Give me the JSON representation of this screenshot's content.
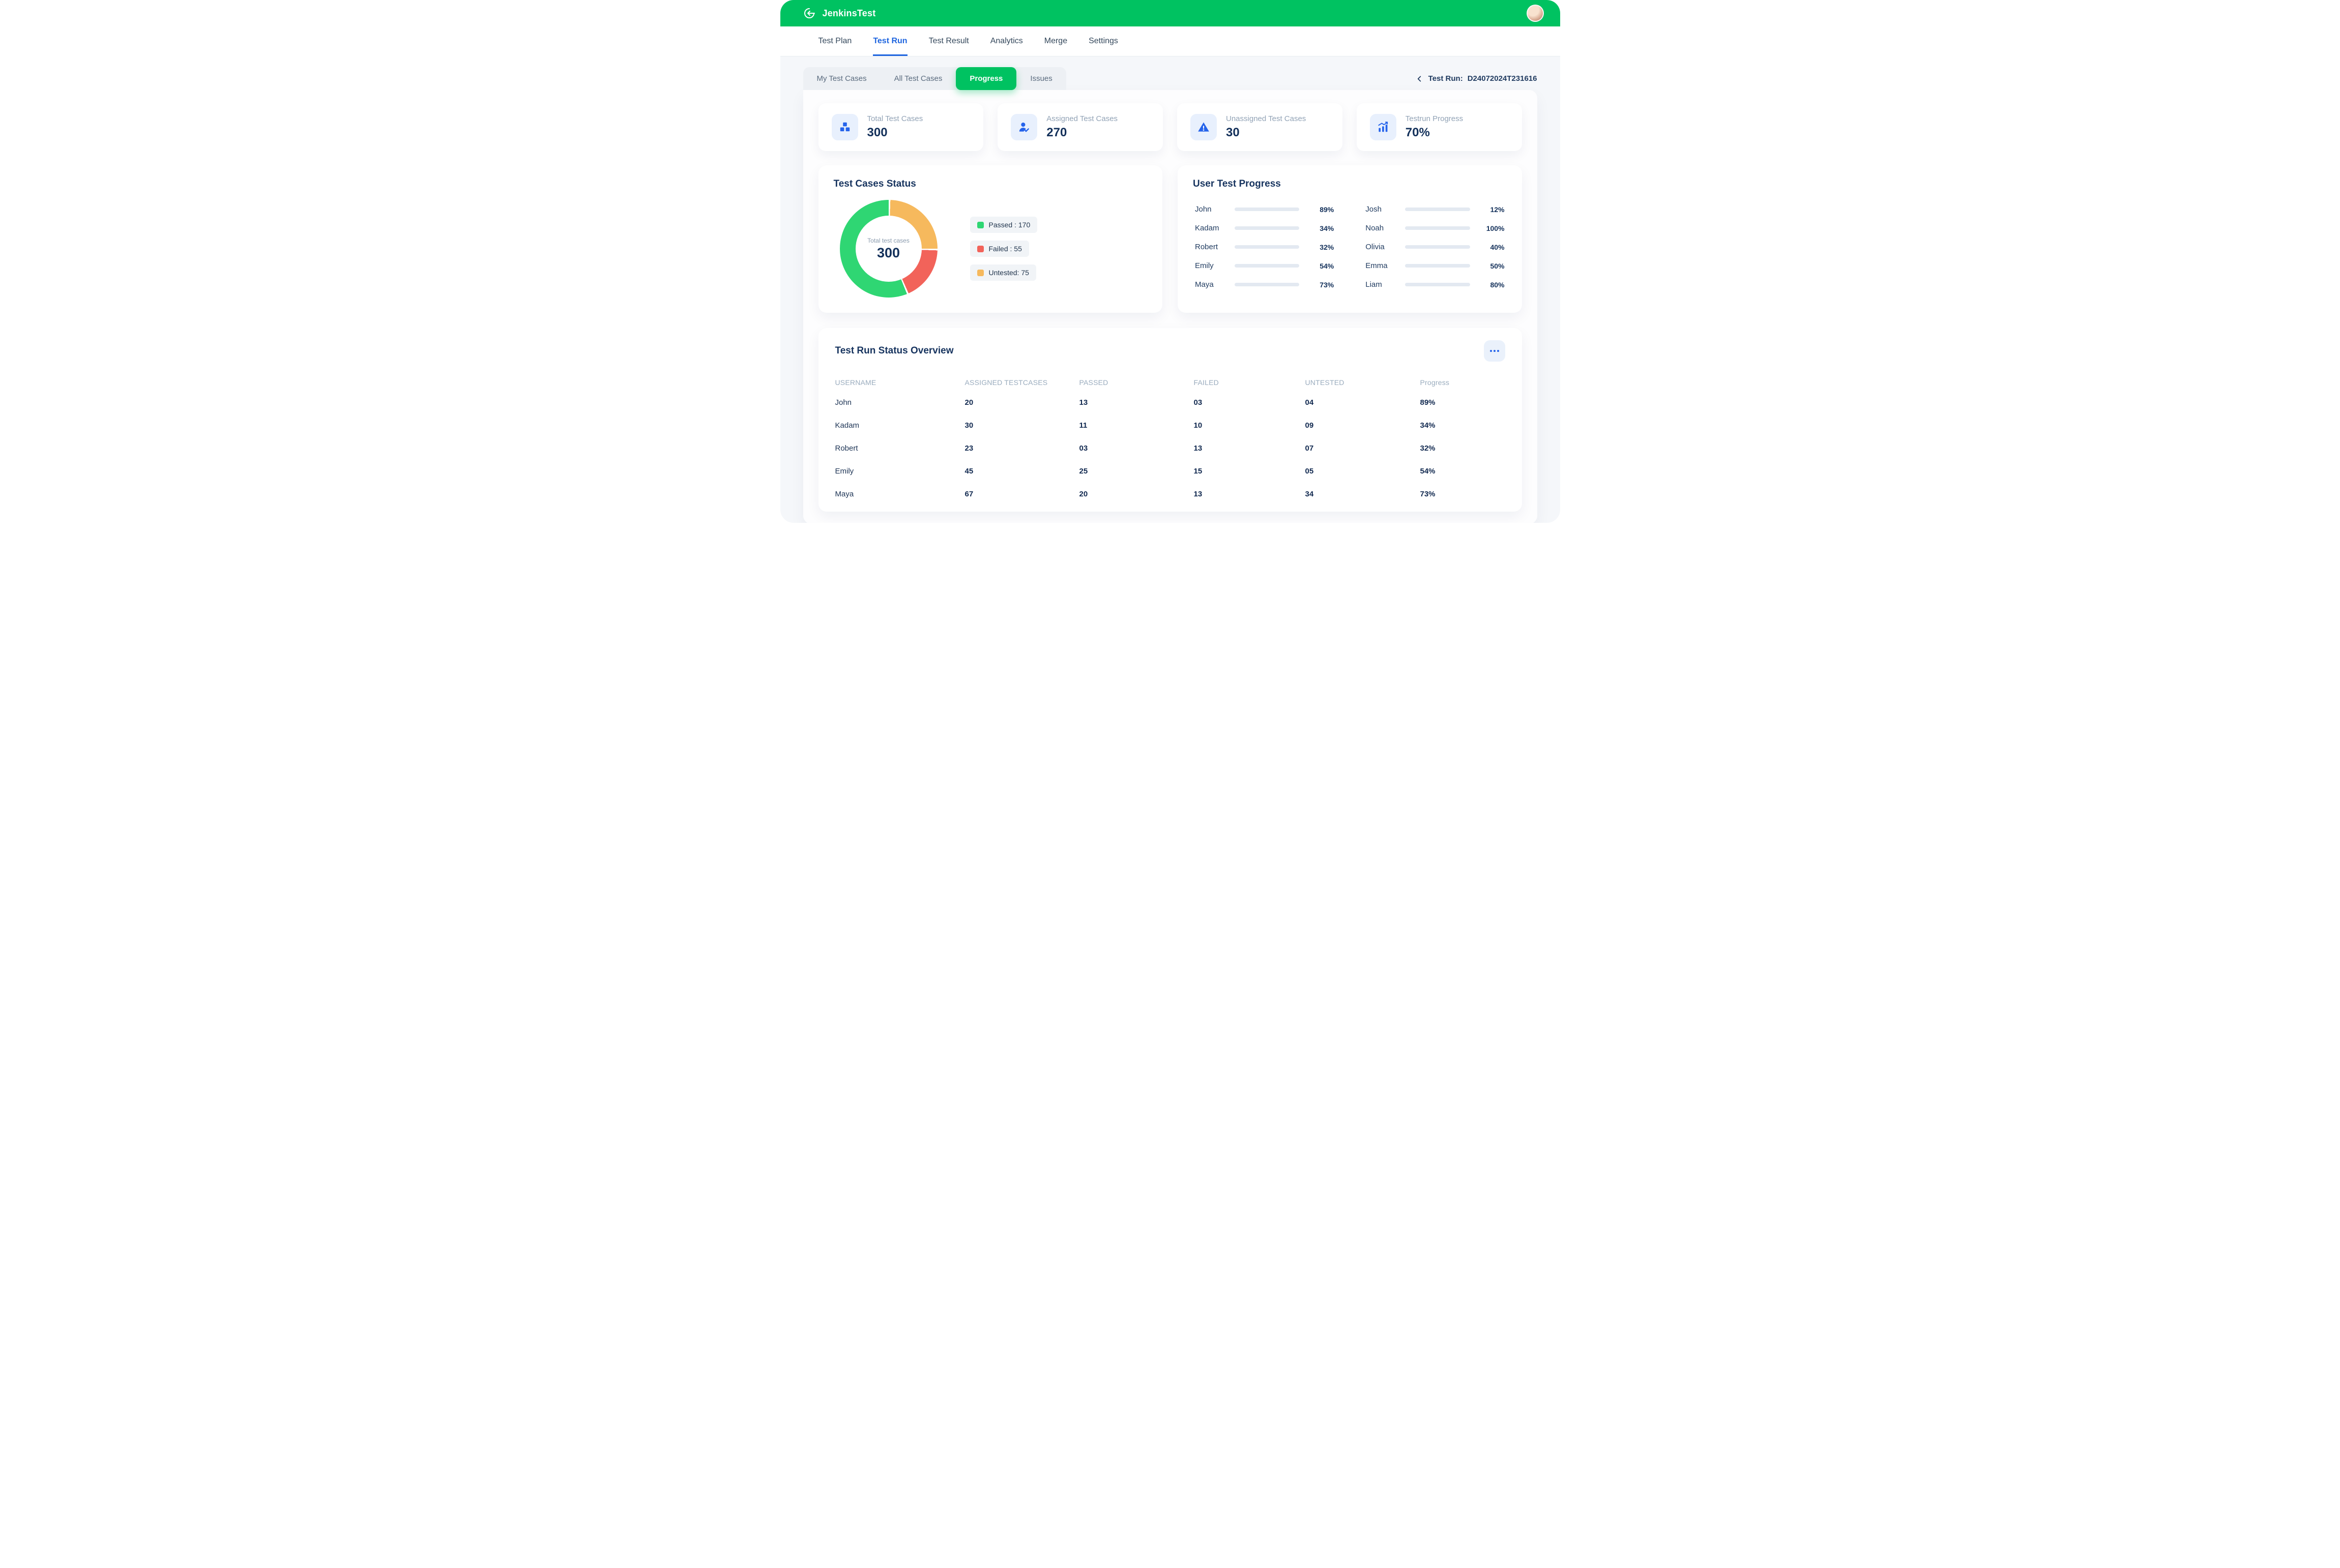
{
  "colors": {
    "brand_green": "#00C261",
    "accent_blue": "#2563EB",
    "active_nav_blue": "#1E65DF",
    "navy": "#16335E",
    "muted_gray": "#92A3B6",
    "passed_green": "#2FD673",
    "failed_red": "#F2635A",
    "untested_orange": "#F6B95D",
    "progress_bar_blue": "#2C63EE"
  },
  "header": {
    "brand": "JenkinsTest"
  },
  "nav": {
    "items": [
      {
        "label": "Test Plan"
      },
      {
        "label": "Test Run",
        "active": true
      },
      {
        "label": "Test Result"
      },
      {
        "label": "Analytics"
      },
      {
        "label": "Merge"
      },
      {
        "label": "Settings"
      }
    ]
  },
  "subtabs": {
    "items": [
      {
        "label": "My Test Cases"
      },
      {
        "label": "All Test Cases"
      },
      {
        "label": "Progress",
        "active": true
      },
      {
        "label": "Issues"
      }
    ]
  },
  "testrun_ref": {
    "label": "Test Run:",
    "value": "D24072024T231616"
  },
  "stats": {
    "cards": [
      {
        "label": "Total Test Cases",
        "value": "300",
        "icon": "blocks-icon"
      },
      {
        "label": "Assigned Test Cases",
        "value": "270",
        "icon": "user-check-icon"
      },
      {
        "label": "Unassigned Test Cases",
        "value": "30",
        "icon": "warning-icon"
      },
      {
        "label": "Testrun Progress",
        "value": "70%",
        "icon": "bar-chart-icon"
      }
    ]
  },
  "status_card": {
    "title": "Test Cases Status",
    "legend": [
      {
        "label": "Passed : 170",
        "color": "#2FD673"
      },
      {
        "label": "Failed : 55",
        "color": "#F2635A"
      },
      {
        "label": "Untested: 75",
        "color": "#F6B95D"
      }
    ]
  },
  "chart_data": {
    "type": "pie",
    "title": "Test Cases Status",
    "center_label": "Total test cases",
    "center_value": "300",
    "total": 300,
    "segments_draw_order": [
      {
        "label": "Untested",
        "value": 75,
        "color": "#F6B95D"
      },
      {
        "label": "Failed",
        "value": 55,
        "color": "#F2635A"
      },
      {
        "label": "Passed",
        "value": 170,
        "color": "#2FD673"
      }
    ]
  },
  "user_progress": {
    "title": "User Test Progress",
    "left": [
      {
        "name": "John",
        "value": 89,
        "label": "89%"
      },
      {
        "name": "Kadam",
        "value": 34,
        "label": "34%"
      },
      {
        "name": "Robert",
        "value": 32,
        "label": "32%"
      },
      {
        "name": "Emily",
        "value": 54,
        "label": "54%"
      },
      {
        "name": "Maya",
        "value": 73,
        "label": "73%"
      }
    ],
    "right": [
      {
        "name": "Josh",
        "value": 12,
        "label": "12%"
      },
      {
        "name": "Noah",
        "value": 100,
        "label": "100%"
      },
      {
        "name": "Olivia",
        "value": 40,
        "label": "40%"
      },
      {
        "name": "Emma",
        "value": 50,
        "label": "50%"
      },
      {
        "name": "Liam",
        "value": 80,
        "label": "80%"
      }
    ]
  },
  "table": {
    "title": "Test Run Status Overview",
    "headers": [
      "USERNAME",
      "ASSIGNED TESTCASES",
      "PASSED",
      "FAILED",
      "UNTESTED",
      "Progress"
    ],
    "rows": [
      {
        "username": "John",
        "assigned": "20",
        "passed": "13",
        "failed": "03",
        "untested": "04",
        "progress": "89%"
      },
      {
        "username": "Kadam",
        "assigned": "30",
        "passed": "11",
        "failed": "10",
        "untested": "09",
        "progress": "34%"
      },
      {
        "username": "Robert",
        "assigned": "23",
        "passed": "03",
        "failed": "13",
        "untested": "07",
        "progress": "32%"
      },
      {
        "username": "Emily",
        "assigned": "45",
        "passed": "25",
        "failed": "15",
        "untested": "05",
        "progress": "54%"
      },
      {
        "username": "Maya",
        "assigned": "67",
        "passed": "20",
        "failed": "13",
        "untested": "34",
        "progress": "73%"
      }
    ]
  }
}
